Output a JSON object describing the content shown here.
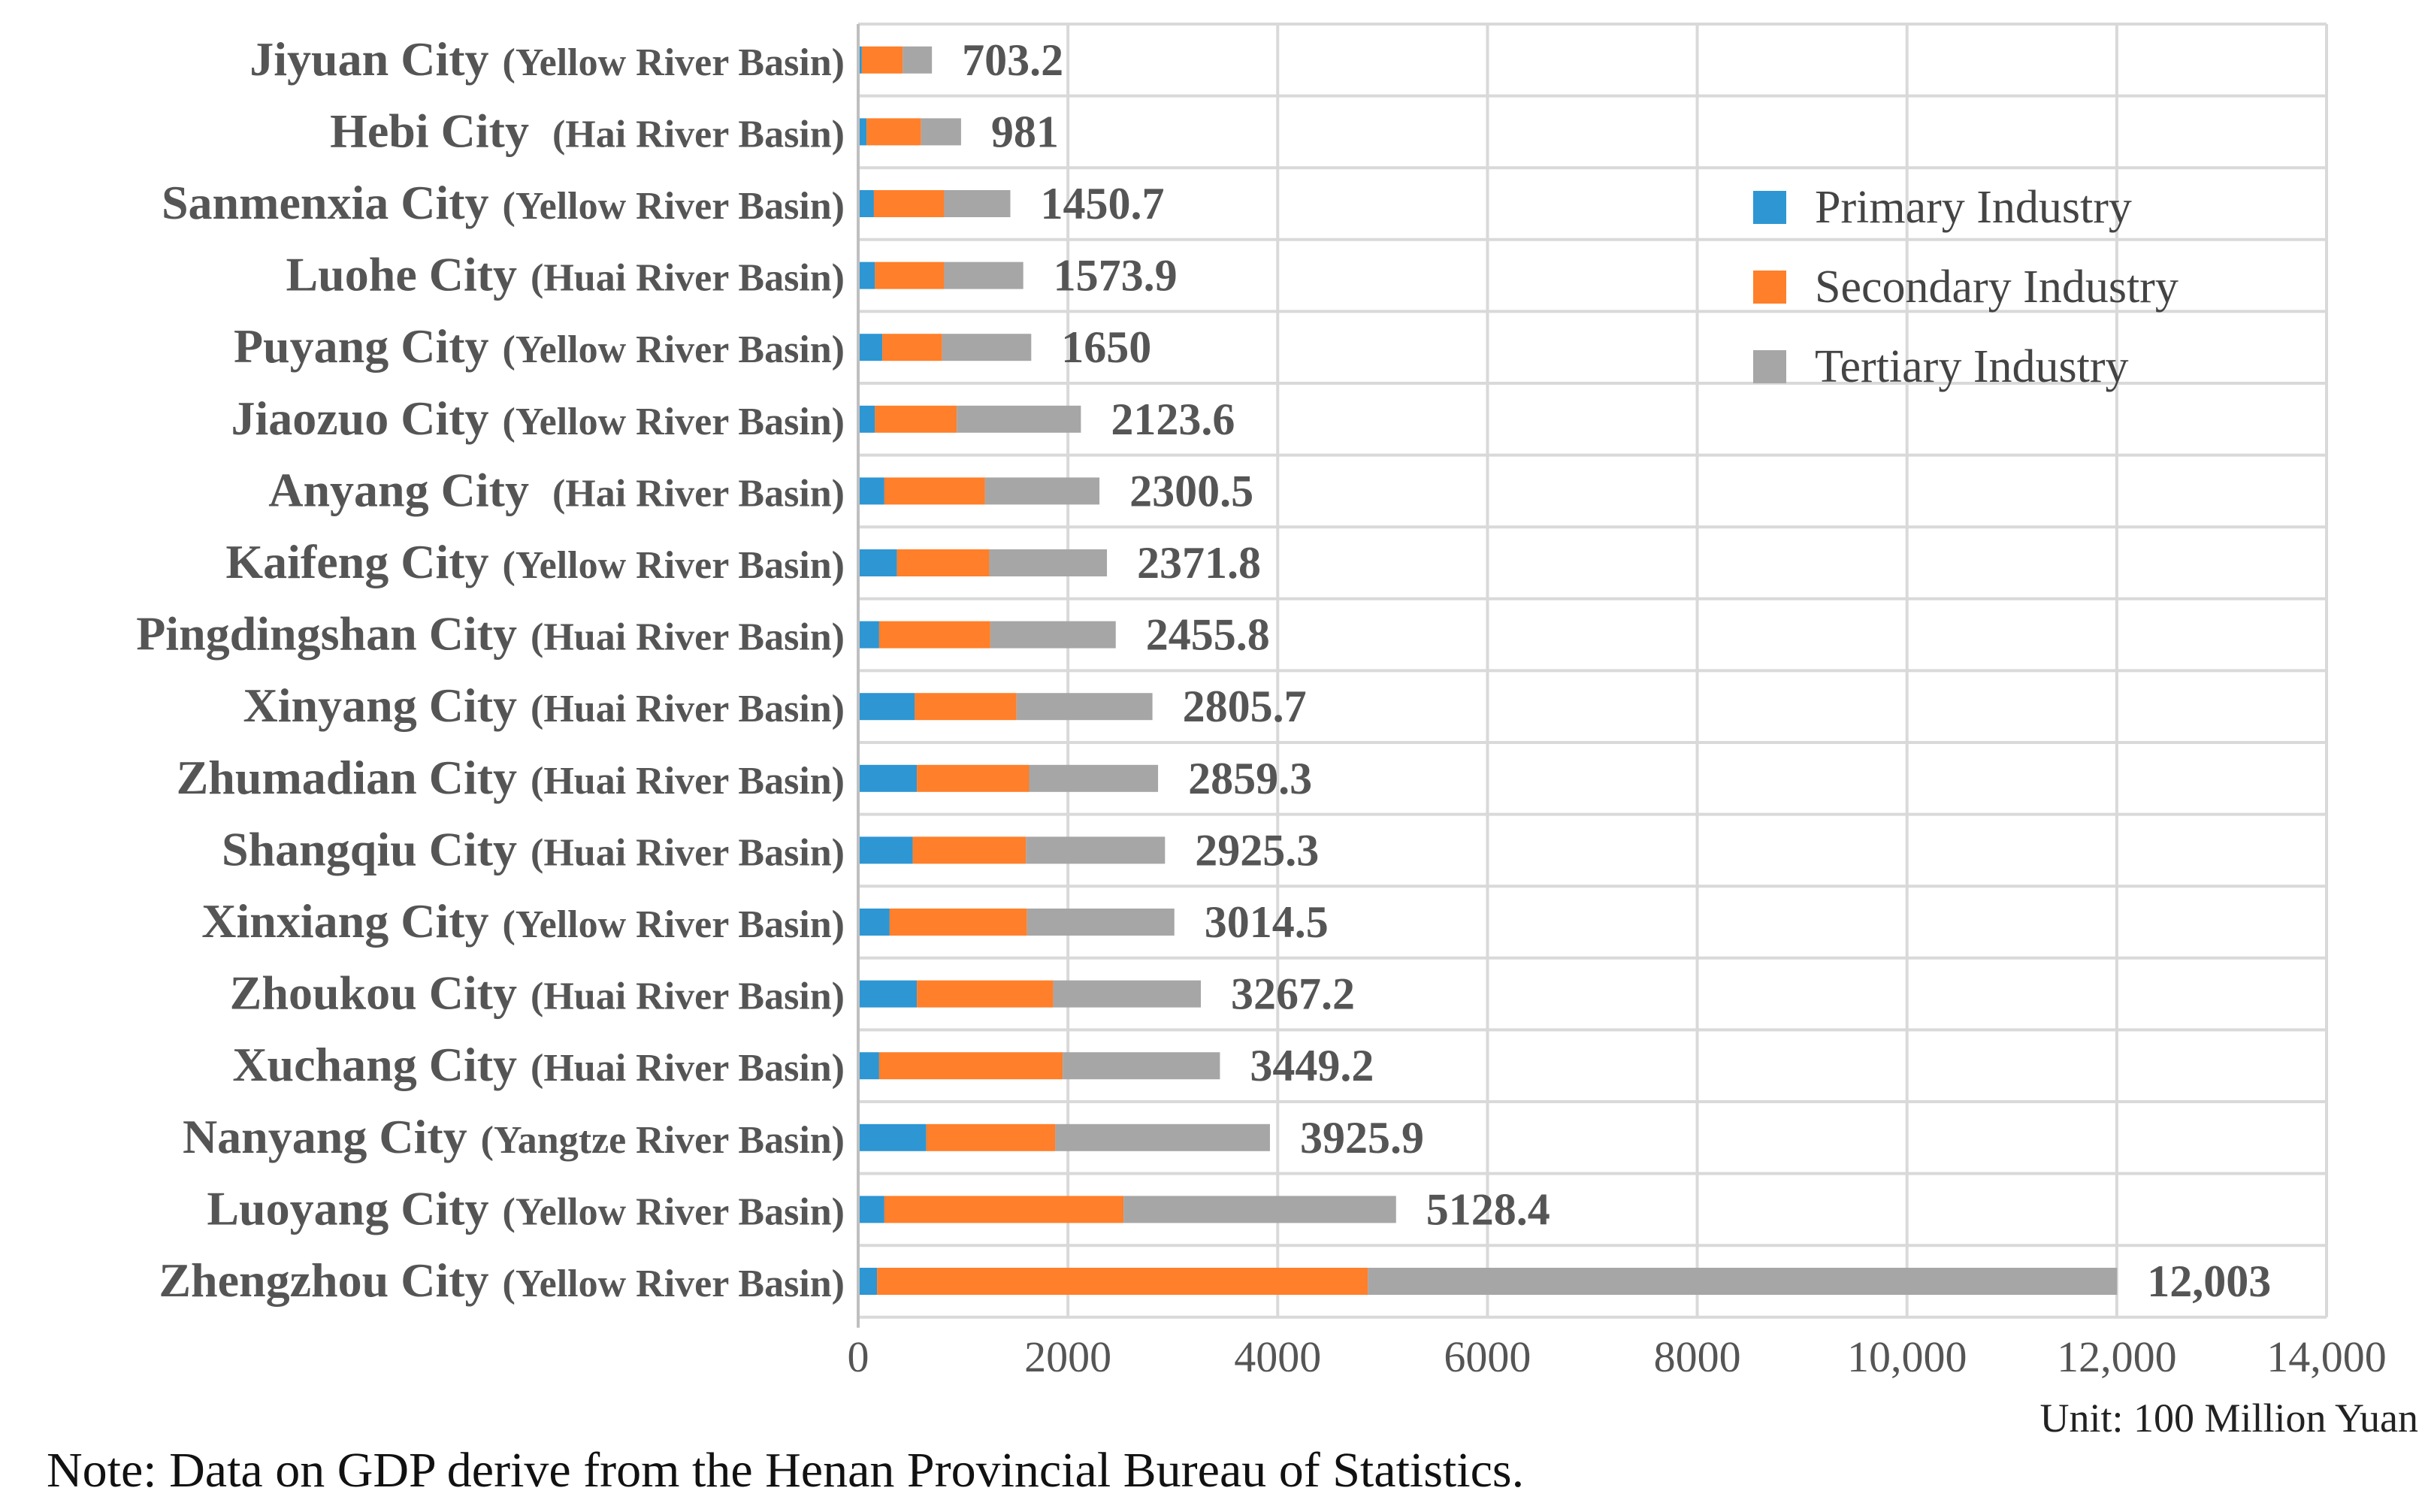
{
  "chart_data": {
    "type": "bar",
    "orientation": "horizontal",
    "stacked": true,
    "categories": [
      {
        "city": "Jiyuan City",
        "basin": "(Yellow River Basin)"
      },
      {
        "city": "Hebi City",
        "basin": " (Hai River Basin)"
      },
      {
        "city": "Sanmenxia City",
        "basin": "(Yellow River Basin)"
      },
      {
        "city": "Luohe City",
        "basin": "(Huai River Basin)"
      },
      {
        "city": "Puyang City",
        "basin": "(Yellow River Basin)"
      },
      {
        "city": "Jiaozuo City",
        "basin": "(Yellow River Basin)"
      },
      {
        "city": "Anyang City",
        "basin": " (Hai River Basin)"
      },
      {
        "city": "Kaifeng City",
        "basin": "(Yellow River Basin)"
      },
      {
        "city": "Pingdingshan City",
        "basin": "(Huai River Basin)"
      },
      {
        "city": "Xinyang City",
        "basin": "(Huai River Basin)"
      },
      {
        "city": "Zhumadian City",
        "basin": "(Huai River Basin)"
      },
      {
        "city": "Shangqiu City",
        "basin": "(Huai River Basin)"
      },
      {
        "city": "Xinxiang City",
        "basin": "(Yellow River Basin)"
      },
      {
        "city": "Zhoukou City",
        "basin": "(Huai River Basin)"
      },
      {
        "city": "Xuchang City",
        "basin": "(Huai River Basin)"
      },
      {
        "city": "Nanyang City",
        "basin": "(Yangtze River Basin)"
      },
      {
        "city": "Luoyang City",
        "basin": "(Yellow River Basin)"
      },
      {
        "city": "Zhengzhou City",
        "basin": "(Yellow River Basin)"
      }
    ],
    "series": [
      {
        "name": "Primary Industry",
        "color": "#2E96D2",
        "values": [
          35,
          80,
          150,
          160,
          230,
          160,
          250,
          370,
          200,
          540,
          560,
          520,
          300,
          560,
          200,
          650,
          250,
          180
        ]
      },
      {
        "name": "Secondary Industry",
        "color": "#FF7F2A",
        "values": [
          390,
          520,
          670,
          660,
          570,
          780,
          960,
          880,
          1060,
          970,
          1070,
          1080,
          1310,
          1300,
          1750,
          1230,
          2280,
          4680
        ]
      },
      {
        "name": "Tertiary Industry",
        "color": "#A6A6A6",
        "values": [
          278.2,
          381,
          630.7,
          753.9,
          850,
          1183.6,
          1090.5,
          1121.8,
          1195.8,
          1295.7,
          1229.3,
          1325.3,
          1404.5,
          1407.2,
          1499.2,
          2045.9,
          2598.4,
          7143
        ]
      }
    ],
    "total_labels": [
      "703.2",
      "981",
      "1450.7",
      "1573.9",
      "1650",
      "2123.6",
      "2300.5",
      "2371.8",
      "2455.8",
      "2805.7",
      "2859.3",
      "2925.3",
      "3014.5",
      "3267.2",
      "3449.2",
      "3925.9",
      "5128.4",
      "12,003"
    ],
    "x_axis": {
      "min": 0,
      "max": 14000,
      "ticks": [
        0,
        2000,
        4000,
        6000,
        8000,
        10000,
        12000,
        14000
      ],
      "tick_labels": [
        "0",
        "2000",
        "4000",
        "6000",
        "8000",
        "10,000",
        "12,000",
        "14,000"
      ]
    },
    "legend_position": "top-right",
    "unit_label": "Unit: 100 Million Yuan",
    "note": "Note: Data on GDP derive from the Henan Provincial Bureau of Statistics.",
    "grid": true
  }
}
